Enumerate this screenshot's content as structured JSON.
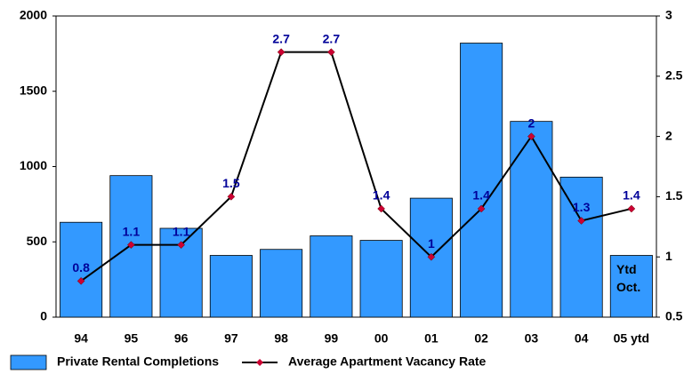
{
  "chart_data": {
    "type": "bar-line",
    "categories": [
      "94",
      "95",
      "96",
      "97",
      "98",
      "99",
      "00",
      "01",
      "02",
      "03",
      "04",
      "05 ytd"
    ],
    "series": [
      {
        "name": "Private Rental Completions",
        "type": "bar",
        "color": "#3399ff",
        "values": [
          630,
          940,
          590,
          410,
          450,
          540,
          510,
          790,
          1820,
          1300,
          930,
          410
        ]
      },
      {
        "name": "Average Apartment Vacancy Rate",
        "type": "line",
        "axis": "y2",
        "color": "#000000",
        "marker_color": "#cc0033",
        "label_color": "#000099",
        "values": [
          0.8,
          1.1,
          1.1,
          1.5,
          2.7,
          2.7,
          1.4,
          1,
          1.4,
          2,
          1.3,
          1.4
        ]
      }
    ],
    "annotation": "Ytd Oct.",
    "ylim": [
      0,
      2000
    ],
    "yticks": [
      0,
      500,
      1000,
      1500,
      2000
    ],
    "y2lim": [
      0.5,
      3
    ],
    "y2ticks": [
      0.5,
      1,
      1.5,
      2,
      2.5,
      3
    ],
    "legend": "bottom"
  }
}
